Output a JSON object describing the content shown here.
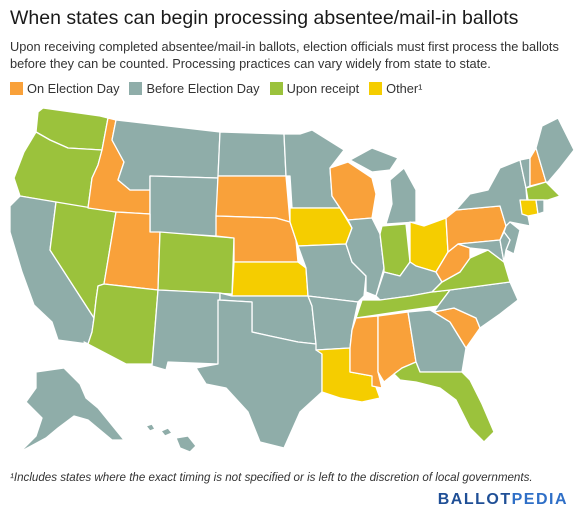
{
  "title": "When states can begin processing absentee/mail-in ballots",
  "subtitle": "Upon receiving completed absentee/mail-in ballots, election officials must first process the ballots before they can be counted. Processing practices can vary widely from state to state.",
  "legend": [
    {
      "label": "On Election Day",
      "color": "#f9a13a"
    },
    {
      "label": "Before Election Day",
      "color": "#8fada9"
    },
    {
      "label": "Upon receipt",
      "color": "#9bc23c"
    },
    {
      "label": "Other¹",
      "color": "#f5cd00"
    }
  ],
  "footnote": "¹Includes states where the exact timing is not specified or is left to the discretion of local governments.",
  "brand": {
    "part1": "BALLOT",
    "part2": "PEDIA"
  },
  "colors": {
    "election_day": "#f9a13a",
    "before": "#8fada9",
    "receipt": "#9bc23c",
    "other": "#f5cd00"
  },
  "states": {
    "WA": "receipt",
    "OR": "receipt",
    "CA": "before",
    "NV": "receipt",
    "ID": "election_day",
    "MT": "before",
    "WY": "before",
    "UT": "election_day",
    "AZ": "receipt",
    "CO": "receipt",
    "NM": "before",
    "ND": "before",
    "SD": "election_day",
    "NE": "election_day",
    "KS": "other",
    "OK": "before",
    "TX": "before",
    "MN": "before",
    "IA": "other",
    "MO": "before",
    "AR": "before",
    "LA": "other",
    "WI": "election_day",
    "IL": "before",
    "MI": "before",
    "IN": "receipt",
    "OH": "other",
    "KY": "before",
    "TN": "receipt",
    "MS": "election_day",
    "AL": "election_day",
    "GA": "before",
    "FL": "receipt",
    "SC": "election_day",
    "NC": "before",
    "VA": "receipt",
    "WV": "election_day",
    "PA": "election_day",
    "NY": "before",
    "VT": "before",
    "NH": "election_day",
    "ME": "before",
    "MA": "receipt",
    "RI": "before",
    "CT": "other",
    "NJ": "before",
    "DE": "before",
    "MD": "before",
    "AK": "before",
    "HI": "before"
  }
}
